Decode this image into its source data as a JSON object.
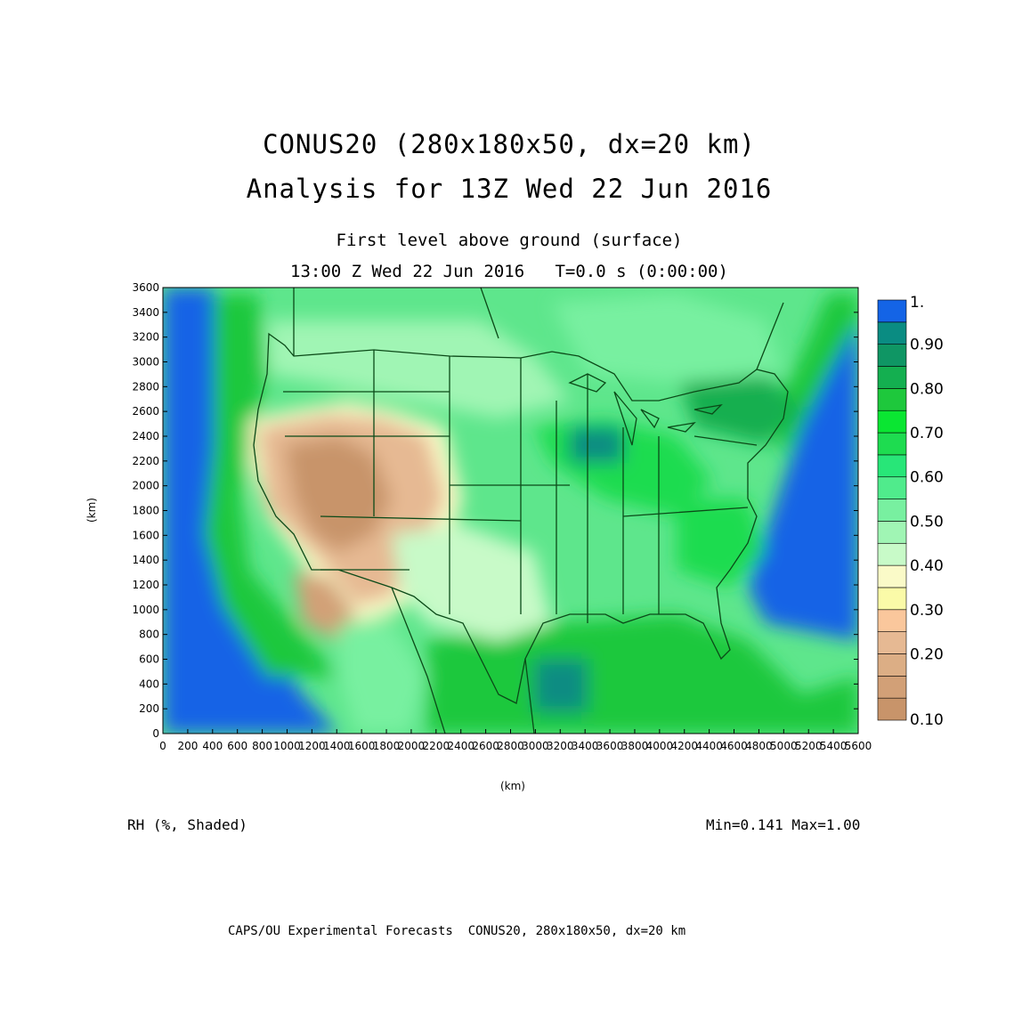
{
  "header": {
    "title_line1": "CONUS20 (280x180x50, dx=20 km)",
    "title_line2": "Analysis for 13Z Wed 22 Jun 2016",
    "level": "First level above ground (surface)",
    "time": "13:00 Z Wed 22 Jun 2016   T=0.0 s (0:00:00)"
  },
  "axes": {
    "x_label": "(km)",
    "y_label": "(km)",
    "x_ticks": [
      "0",
      "200",
      "400",
      "600",
      "800",
      "1000",
      "1200",
      "1400",
      "1600",
      "1800",
      "2000",
      "2200",
      "2400",
      "2600",
      "2800",
      "3000",
      "3200",
      "3400",
      "3600",
      "3800",
      "4000",
      "4200",
      "4400",
      "4600",
      "4800",
      "5000",
      "5200",
      "5400",
      "5600"
    ],
    "y_ticks": [
      "0",
      "200",
      "400",
      "600",
      "800",
      "1000",
      "1200",
      "1400",
      "1600",
      "1800",
      "2000",
      "2200",
      "2400",
      "2600",
      "2800",
      "3000",
      "3200",
      "3400",
      "3600"
    ],
    "x_range": [
      0,
      5600
    ],
    "y_range": [
      0,
      3600
    ]
  },
  "colorbar": {
    "levels": [
      {
        "label": "0.10",
        "color": "#c8946a"
      },
      {
        "label": "",
        "color": "#d2a077"
      },
      {
        "label": "0.20",
        "color": "#dcae85"
      },
      {
        "label": "",
        "color": "#e6b993"
      },
      {
        "label": "0.30",
        "color": "#fac79c"
      },
      {
        "label": "",
        "color": "#fafaa8"
      },
      {
        "label": "0.40",
        "color": "#fafac8"
      },
      {
        "label": "",
        "color": "#c8fac8"
      },
      {
        "label": "0.50",
        "color": "#a0f5b4"
      },
      {
        "label": "",
        "color": "#78f0a0"
      },
      {
        "label": "0.60",
        "color": "#50eb8c"
      },
      {
        "label": "",
        "color": "#28e678"
      },
      {
        "label": "0.70",
        "color": "#1edc50"
      },
      {
        "label": "",
        "color": "#0ae632"
      },
      {
        "label": "0.80",
        "color": "#1ec83c"
      },
      {
        "label": "",
        "color": "#14af50"
      },
      {
        "label": "0.90",
        "color": "#0f9664"
      },
      {
        "label": "",
        "color": "#0a8c82"
      },
      {
        "label": "1.",
        "color": "#1464e6"
      }
    ]
  },
  "field_info": {
    "variable": "RH (%, Shaded)",
    "minmax": "Min=0.141 Max=1.00"
  },
  "footer": "CAPS/OU Experimental Forecasts  CONUS20, 280x180x50, dx=20 km",
  "colors": {
    "ocean": "#1464e6",
    "border": "#0b4a18",
    "dry": "#d2a077",
    "moist": "#1ec83c"
  }
}
